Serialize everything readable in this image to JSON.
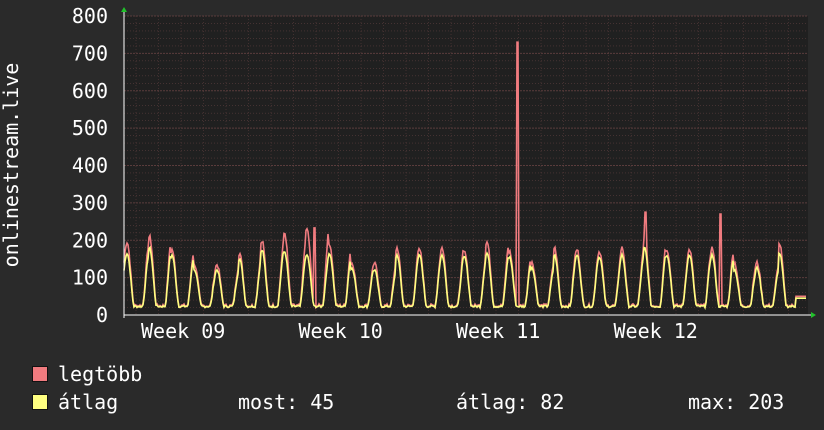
{
  "colors": {
    "background": "#2a2a2a",
    "plot_background": "#202020",
    "grid": "#5a3c3c",
    "max_series": "#f07b7f",
    "avg_series": "#ffff80",
    "text": "#ffffff",
    "arrow": "#21c12b"
  },
  "chart_data": {
    "type": "line",
    "ylabel": "onlinestream.live",
    "ylim": [
      0,
      800
    ],
    "yticks": [
      "0",
      "100",
      "200",
      "300",
      "400",
      "500",
      "600",
      "700",
      "800"
    ],
    "xticks": [
      "Week 09",
      "Week 10",
      "Week 11",
      "Week 12"
    ],
    "grid": true,
    "legend_placement": "bottom",
    "series": [
      {
        "name": "legtöbb",
        "color": "#f07b7f"
      },
      {
        "name": "átlag",
        "color": "#ffff80"
      }
    ],
    "daily_peaks_max": [
      195,
      210,
      175,
      135,
      135,
      165,
      200,
      220,
      230,
      190,
      140,
      140,
      180,
      175,
      180,
      168,
      195,
      170,
      140,
      180,
      175,
      170,
      180,
      205,
      175,
      175,
      180,
      140,
      140,
      190,
      180,
      185,
      195,
      205,
      180,
      170
    ],
    "daily_peaks_avg": [
      170,
      185,
      165,
      125,
      125,
      155,
      180,
      175,
      165,
      170,
      130,
      125,
      165,
      165,
      165,
      160,
      170,
      160,
      130,
      165,
      165,
      160,
      165,
      185,
      165,
      165,
      165,
      125,
      130,
      170,
      165,
      170,
      185,
      185,
      165,
      160
    ],
    "spikes_max": [
      {
        "week_pos": 2.42,
        "value": 730
      },
      {
        "week_pos": 3.23,
        "value": 275
      },
      {
        "week_pos": 3.71,
        "value": 270
      },
      {
        "week_pos": 1.13,
        "value": 233
      }
    ],
    "last_value": 45
  },
  "legend": {
    "max_label": "legtöbb",
    "avg_label": "átlag"
  },
  "stats": {
    "current": "most: 45",
    "average": "átlag: 82",
    "max": "max: 203"
  }
}
